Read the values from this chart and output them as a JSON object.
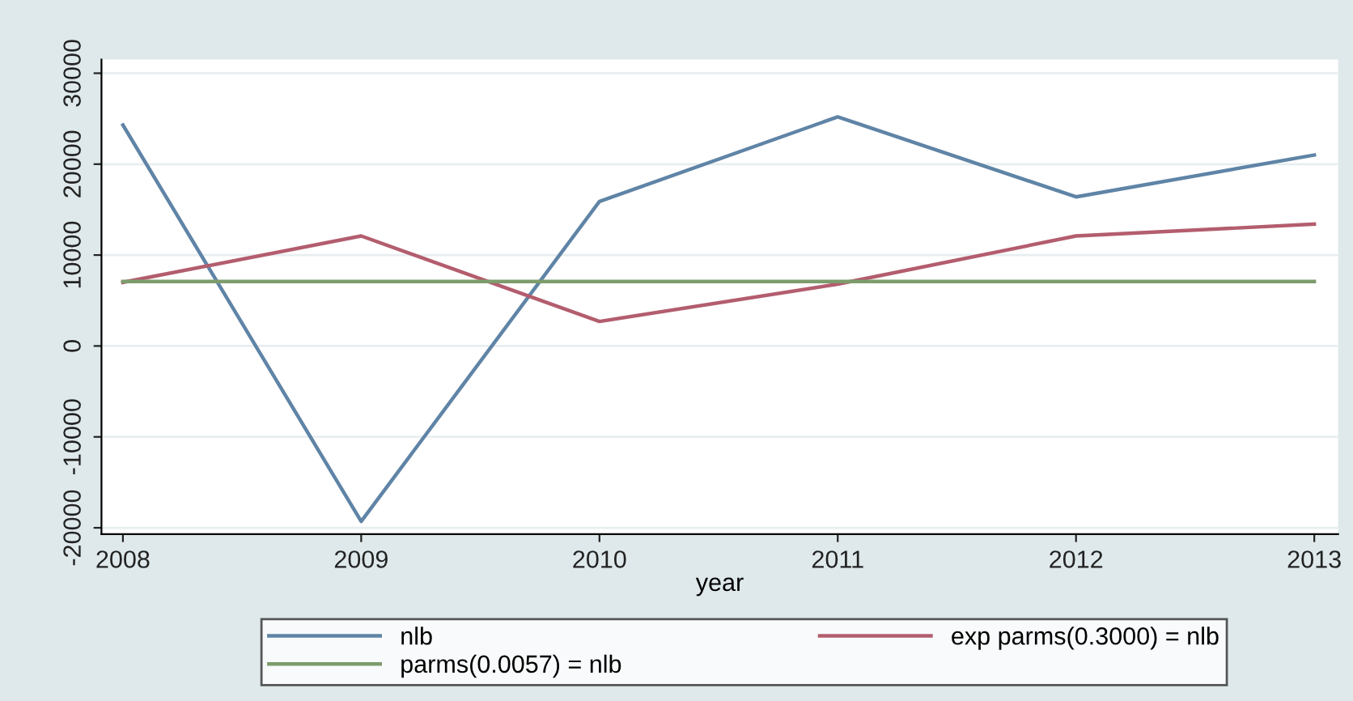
{
  "chart_data": {
    "type": "line",
    "xlabel": "year",
    "x": [
      2008,
      2009,
      2010,
      2011,
      2012,
      2013
    ],
    "xlim": [
      2007.91,
      2013.1
    ],
    "xticks": [
      2008,
      2009,
      2010,
      2011,
      2012,
      2013
    ],
    "ylim": [
      -20700,
      31500
    ],
    "yticks": [
      -20000,
      -10000,
      0,
      10000,
      20000,
      30000
    ],
    "grid": "y",
    "legend": "bottom",
    "marker": "none",
    "line_style": "solid",
    "series": [
      {
        "name": "nlb",
        "color": "#5f84a6",
        "values": [
          24300,
          -19300,
          15900,
          25200,
          16400,
          21000
        ]
      },
      {
        "name": "exp parms(0.3000) = nlb",
        "color": "#b35d6e",
        "values": [
          7000,
          12100,
          2700,
          6800,
          12100,
          13400
        ]
      },
      {
        "name": "parms(0.0057) = nlb",
        "color": "#7d9c6c",
        "values": [
          7100,
          7100,
          7100,
          7100,
          7100,
          7100
        ]
      }
    ]
  }
}
